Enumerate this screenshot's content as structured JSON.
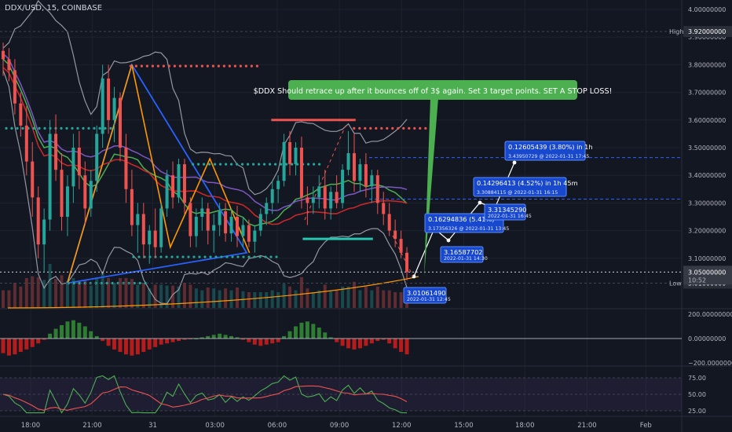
{
  "header": {
    "symbol": "DDX/USD, 15, COINBASE"
  },
  "colors": {
    "bg": "#131722",
    "grid": "#1e222d",
    "up": "#26a69a",
    "down": "#ef5350",
    "text": "#b2b5be",
    "accent_blue": "#2962ff",
    "annotation_green": "#4caf50"
  },
  "chart_data": [
    {
      "type": "candlestick",
      "ylim": [
        3.0,
        4.0
      ],
      "xlim": [
        0,
        100
      ],
      "x_ticks": [
        {
          "label": "18:00",
          "x": 4.3
        },
        {
          "label": "21:00",
          "x": 15.2
        },
        {
          "label": "31",
          "x": 25.9
        },
        {
          "label": "03:00",
          "x": 36.9
        },
        {
          "label": "06:00",
          "x": 47.9
        },
        {
          "label": "09:00",
          "x": 58.9
        },
        {
          "label": "12:00",
          "x": 69.9
        },
        {
          "label": "15:00",
          "x": 80.9
        },
        {
          "label": "18:00",
          "x": 91.7
        },
        {
          "label": "21:00",
          "x": 102.7
        },
        {
          "label": "Feb",
          "x": 113.1
        }
      ],
      "y_ticks": [
        "4.00000000",
        "3.90000000",
        "3.80000000",
        "3.70000000",
        "3.60000000",
        "3.50000000",
        "3.40000000",
        "3.30000000",
        "3.20000000",
        "3.10000000"
      ],
      "y_tick_values": [
        4.0,
        3.9,
        3.8,
        3.7,
        3.6,
        3.5,
        3.4,
        3.3,
        3.2,
        3.1
      ],
      "price_labels": {
        "high": {
          "label": "High",
          "value": 3.92,
          "text": "3.92000000"
        },
        "low": {
          "label": "Low",
          "value": 3.01,
          "text": "3.01000000"
        },
        "last": {
          "value": 3.05,
          "text": "3.05000000",
          "countdown": "10:52"
        }
      },
      "candles_ohlc": [
        [
          3.85,
          3.88,
          3.76,
          3.82
        ],
        [
          3.82,
          3.86,
          3.74,
          3.78
        ],
        [
          3.78,
          3.82,
          3.62,
          3.66
        ],
        [
          3.66,
          3.7,
          3.54,
          3.58
        ],
        [
          3.58,
          3.65,
          3.4,
          3.45
        ],
        [
          3.45,
          3.52,
          3.25,
          3.32
        ],
        [
          3.32,
          3.36,
          3.1,
          3.15
        ],
        [
          3.15,
          3.28,
          3.05,
          3.24
        ],
        [
          3.24,
          3.6,
          3.2,
          3.55
        ],
        [
          3.55,
          3.62,
          3.38,
          3.42
        ],
        [
          3.42,
          3.48,
          3.2,
          3.25
        ],
        [
          3.25,
          3.4,
          3.18,
          3.36
        ],
        [
          3.36,
          3.55,
          3.3,
          3.5
        ],
        [
          3.5,
          3.56,
          3.35,
          3.4
        ],
        [
          3.4,
          3.45,
          3.22,
          3.28
        ],
        [
          3.28,
          3.42,
          3.25,
          3.38
        ],
        [
          3.38,
          3.58,
          3.34,
          3.55
        ],
        [
          3.55,
          3.8,
          3.5,
          3.75
        ],
        [
          3.75,
          3.8,
          3.55,
          3.6
        ],
        [
          3.6,
          3.72,
          3.52,
          3.68
        ],
        [
          3.68,
          3.7,
          3.45,
          3.5
        ],
        [
          3.5,
          3.55,
          3.3,
          3.35
        ],
        [
          3.35,
          3.42,
          3.18,
          3.22
        ],
        [
          3.22,
          3.3,
          3.12,
          3.26
        ],
        [
          3.26,
          3.3,
          3.1,
          3.15
        ],
        [
          3.15,
          3.22,
          3.08,
          3.2
        ],
        [
          3.2,
          3.28,
          3.1,
          3.14
        ],
        [
          3.14,
          3.3,
          3.12,
          3.28
        ],
        [
          3.28,
          3.42,
          3.25,
          3.4
        ],
        [
          3.4,
          3.45,
          3.28,
          3.32
        ],
        [
          3.32,
          3.46,
          3.3,
          3.44
        ],
        [
          3.44,
          3.46,
          3.26,
          3.3
        ],
        [
          3.3,
          3.32,
          3.14,
          3.18
        ],
        [
          3.18,
          3.28,
          3.14,
          3.25
        ],
        [
          3.25,
          3.32,
          3.2,
          3.28
        ],
        [
          3.28,
          3.3,
          3.15,
          3.2
        ],
        [
          3.2,
          3.26,
          3.12,
          3.22
        ],
        [
          3.22,
          3.3,
          3.18,
          3.27
        ],
        [
          3.27,
          3.3,
          3.16,
          3.19
        ],
        [
          3.19,
          3.28,
          3.16,
          3.25
        ],
        [
          3.25,
          3.29,
          3.14,
          3.18
        ],
        [
          3.18,
          3.25,
          3.14,
          3.22
        ],
        [
          3.22,
          3.24,
          3.14,
          3.16
        ],
        [
          3.16,
          3.22,
          3.12,
          3.2
        ],
        [
          3.2,
          3.28,
          3.18,
          3.26
        ],
        [
          3.26,
          3.32,
          3.22,
          3.3
        ],
        [
          3.3,
          3.38,
          3.26,
          3.35
        ],
        [
          3.35,
          3.4,
          3.3,
          3.38
        ],
        [
          3.38,
          3.55,
          3.36,
          3.52
        ],
        [
          3.52,
          3.56,
          3.4,
          3.44
        ],
        [
          3.44,
          3.52,
          3.4,
          3.5
        ],
        [
          3.5,
          3.54,
          3.28,
          3.32
        ],
        [
          3.32,
          3.36,
          3.22,
          3.3
        ],
        [
          3.3,
          3.36,
          3.26,
          3.32
        ],
        [
          3.32,
          3.4,
          3.28,
          3.36
        ],
        [
          3.36,
          3.42,
          3.24,
          3.28
        ],
        [
          3.28,
          3.36,
          3.24,
          3.34
        ],
        [
          3.34,
          3.4,
          3.28,
          3.3
        ],
        [
          3.3,
          3.44,
          3.28,
          3.42
        ],
        [
          3.42,
          3.56,
          3.4,
          3.48
        ],
        [
          3.48,
          3.55,
          3.34,
          3.38
        ],
        [
          3.38,
          3.46,
          3.34,
          3.44
        ],
        [
          3.44,
          3.48,
          3.32,
          3.36
        ],
        [
          3.36,
          3.42,
          3.3,
          3.4
        ],
        [
          3.4,
          3.42,
          3.26,
          3.3
        ],
        [
          3.3,
          3.34,
          3.22,
          3.26
        ],
        [
          3.26,
          3.3,
          3.18,
          3.2
        ],
        [
          3.2,
          3.24,
          3.14,
          3.17
        ],
        [
          3.17,
          3.2,
          3.1,
          3.12
        ],
        [
          3.12,
          3.14,
          3.02,
          3.05
        ]
      ],
      "drawings": {
        "triangle_blue": [
          [
            22.2,
            3.8
          ],
          [
            42.5,
            3.12
          ],
          [
            10.8,
            3.01
          ]
        ],
        "orange_zigzag": [
          [
            10.8,
            3.01
          ],
          [
            22.2,
            3.8
          ],
          [
            29.0,
            3.14
          ],
          [
            36.0,
            3.46
          ],
          [
            43.0,
            3.12
          ]
        ],
        "dots_red_top": {
          "y": 3.795,
          "x_from": 22.0,
          "x_to": 45.0
        },
        "dots_green_left": {
          "y": 3.57,
          "x_from": 0.0,
          "x_to": 18.5
        },
        "dots_green_mid": {
          "y": 3.44,
          "x_from": 33.0,
          "x_to": 56.0
        },
        "dots_green_low": {
          "y": 3.105,
          "x_from": 22.5,
          "x_to": 48.5
        },
        "dots_green_bottom": {
          "y": 3.01,
          "x_from": 11.0,
          "x_to": 25.0
        },
        "dots_red_right": {
          "y": 3.57,
          "x_from": 61.5,
          "x_to": 76.0
        },
        "line_red_high": {
          "y": 3.6,
          "x_from": 78.8,
          "x_to": 94.0
        },
        "line_green_support": {
          "y": 3.17,
          "x_from": 67.0,
          "x_to": 94.0
        },
        "dashed_blue_levels": [
          3.464,
          3.314
        ],
        "dashed_white_level": 3.05
      },
      "annotation": "$DDX Should retrace up after it bounces off of 3$ again. Set 3 target points. SET A STOP LOSS!",
      "measurements": [
        {
          "line1": "3.01061490",
          "line2": "2022-01-31 12:45",
          "price": 3.0106
        },
        {
          "line1": "0.16294836 (5.41%)",
          "line2": "3.17356326 @ 2022-01-31 13:45",
          "price": 3.1736
        },
        {
          "line1": "3.16587702",
          "line2": "2022-01-31 14:30",
          "price": 3.1659
        },
        {
          "line1": "3.31345290",
          "line2": "2022-01-31 16:45",
          "price": 3.3135
        },
        {
          "line1": "0.14296413 (4.52%) in 1h 45m",
          "line2": "3.30884115 @ 2022-01-31 16:15",
          "price": 3.3088
        },
        {
          "line1": "0.12605439 (3.80%) in 1h",
          "line2": "3.43950729 @ 2022-01-31 17:45",
          "price": 3.4395
        }
      ]
    },
    {
      "type": "histogram",
      "name": "oscillator",
      "ylim": [
        -200,
        200
      ],
      "y_ticks": [
        "200.00000000",
        "0.00000000",
        "−200.00000000"
      ],
      "y_tick_values": [
        200,
        0,
        -200
      ],
      "values": [
        -120,
        -140,
        -130,
        -110,
        -90,
        -70,
        -40,
        -10,
        40,
        80,
        110,
        140,
        150,
        130,
        100,
        60,
        20,
        -20,
        -60,
        -90,
        -110,
        -130,
        -140,
        -130,
        -110,
        -90,
        -70,
        -50,
        -40,
        -30,
        -20,
        -10,
        -5,
        0,
        10,
        20,
        30,
        40,
        30,
        20,
        10,
        -10,
        -30,
        -50,
        -60,
        -50,
        -40,
        -30,
        20,
        60,
        100,
        130,
        140,
        120,
        90,
        50,
        10,
        -30,
        -60,
        -80,
        -90,
        -80,
        -60,
        -40,
        -20,
        -10,
        -40,
        -80,
        -110,
        -130
      ]
    },
    {
      "type": "line",
      "name": "rsi",
      "ylim": [
        20,
        80
      ],
      "y_ticks": [
        "75.00",
        "50.00",
        "25.00"
      ],
      "y_tick_values": [
        75,
        50,
        25
      ]
    }
  ]
}
